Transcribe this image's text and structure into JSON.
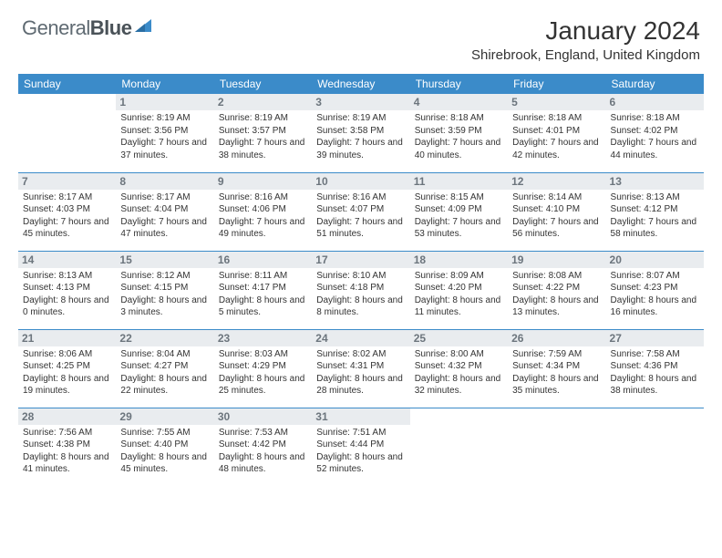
{
  "logo": {
    "text1": "General",
    "text2": "Blue",
    "triangle_color": "#3b8bc9"
  },
  "title": "January 2024",
  "location": "Shirebrook, England, United Kingdom",
  "colors": {
    "header_bg": "#3b8bc9",
    "header_text": "#ffffff",
    "daynum_bg": "#e9ecef",
    "daynum_text": "#6c757d",
    "cell_border": "#3b8bc9",
    "body_text": "#333333",
    "logo_gray": "#5f6a72"
  },
  "weekdays": [
    "Sunday",
    "Monday",
    "Tuesday",
    "Wednesday",
    "Thursday",
    "Friday",
    "Saturday"
  ],
  "weeks": [
    [
      {
        "n": "",
        "sr": "",
        "ss": "",
        "dl": ""
      },
      {
        "n": "1",
        "sr": "Sunrise: 8:19 AM",
        "ss": "Sunset: 3:56 PM",
        "dl": "Daylight: 7 hours and 37 minutes."
      },
      {
        "n": "2",
        "sr": "Sunrise: 8:19 AM",
        "ss": "Sunset: 3:57 PM",
        "dl": "Daylight: 7 hours and 38 minutes."
      },
      {
        "n": "3",
        "sr": "Sunrise: 8:19 AM",
        "ss": "Sunset: 3:58 PM",
        "dl": "Daylight: 7 hours and 39 minutes."
      },
      {
        "n": "4",
        "sr": "Sunrise: 8:18 AM",
        "ss": "Sunset: 3:59 PM",
        "dl": "Daylight: 7 hours and 40 minutes."
      },
      {
        "n": "5",
        "sr": "Sunrise: 8:18 AM",
        "ss": "Sunset: 4:01 PM",
        "dl": "Daylight: 7 hours and 42 minutes."
      },
      {
        "n": "6",
        "sr": "Sunrise: 8:18 AM",
        "ss": "Sunset: 4:02 PM",
        "dl": "Daylight: 7 hours and 44 minutes."
      }
    ],
    [
      {
        "n": "7",
        "sr": "Sunrise: 8:17 AM",
        "ss": "Sunset: 4:03 PM",
        "dl": "Daylight: 7 hours and 45 minutes."
      },
      {
        "n": "8",
        "sr": "Sunrise: 8:17 AM",
        "ss": "Sunset: 4:04 PM",
        "dl": "Daylight: 7 hours and 47 minutes."
      },
      {
        "n": "9",
        "sr": "Sunrise: 8:16 AM",
        "ss": "Sunset: 4:06 PM",
        "dl": "Daylight: 7 hours and 49 minutes."
      },
      {
        "n": "10",
        "sr": "Sunrise: 8:16 AM",
        "ss": "Sunset: 4:07 PM",
        "dl": "Daylight: 7 hours and 51 minutes."
      },
      {
        "n": "11",
        "sr": "Sunrise: 8:15 AM",
        "ss": "Sunset: 4:09 PM",
        "dl": "Daylight: 7 hours and 53 minutes."
      },
      {
        "n": "12",
        "sr": "Sunrise: 8:14 AM",
        "ss": "Sunset: 4:10 PM",
        "dl": "Daylight: 7 hours and 56 minutes."
      },
      {
        "n": "13",
        "sr": "Sunrise: 8:13 AM",
        "ss": "Sunset: 4:12 PM",
        "dl": "Daylight: 7 hours and 58 minutes."
      }
    ],
    [
      {
        "n": "14",
        "sr": "Sunrise: 8:13 AM",
        "ss": "Sunset: 4:13 PM",
        "dl": "Daylight: 8 hours and 0 minutes."
      },
      {
        "n": "15",
        "sr": "Sunrise: 8:12 AM",
        "ss": "Sunset: 4:15 PM",
        "dl": "Daylight: 8 hours and 3 minutes."
      },
      {
        "n": "16",
        "sr": "Sunrise: 8:11 AM",
        "ss": "Sunset: 4:17 PM",
        "dl": "Daylight: 8 hours and 5 minutes."
      },
      {
        "n": "17",
        "sr": "Sunrise: 8:10 AM",
        "ss": "Sunset: 4:18 PM",
        "dl": "Daylight: 8 hours and 8 minutes."
      },
      {
        "n": "18",
        "sr": "Sunrise: 8:09 AM",
        "ss": "Sunset: 4:20 PM",
        "dl": "Daylight: 8 hours and 11 minutes."
      },
      {
        "n": "19",
        "sr": "Sunrise: 8:08 AM",
        "ss": "Sunset: 4:22 PM",
        "dl": "Daylight: 8 hours and 13 minutes."
      },
      {
        "n": "20",
        "sr": "Sunrise: 8:07 AM",
        "ss": "Sunset: 4:23 PM",
        "dl": "Daylight: 8 hours and 16 minutes."
      }
    ],
    [
      {
        "n": "21",
        "sr": "Sunrise: 8:06 AM",
        "ss": "Sunset: 4:25 PM",
        "dl": "Daylight: 8 hours and 19 minutes."
      },
      {
        "n": "22",
        "sr": "Sunrise: 8:04 AM",
        "ss": "Sunset: 4:27 PM",
        "dl": "Daylight: 8 hours and 22 minutes."
      },
      {
        "n": "23",
        "sr": "Sunrise: 8:03 AM",
        "ss": "Sunset: 4:29 PM",
        "dl": "Daylight: 8 hours and 25 minutes."
      },
      {
        "n": "24",
        "sr": "Sunrise: 8:02 AM",
        "ss": "Sunset: 4:31 PM",
        "dl": "Daylight: 8 hours and 28 minutes."
      },
      {
        "n": "25",
        "sr": "Sunrise: 8:00 AM",
        "ss": "Sunset: 4:32 PM",
        "dl": "Daylight: 8 hours and 32 minutes."
      },
      {
        "n": "26",
        "sr": "Sunrise: 7:59 AM",
        "ss": "Sunset: 4:34 PM",
        "dl": "Daylight: 8 hours and 35 minutes."
      },
      {
        "n": "27",
        "sr": "Sunrise: 7:58 AM",
        "ss": "Sunset: 4:36 PM",
        "dl": "Daylight: 8 hours and 38 minutes."
      }
    ],
    [
      {
        "n": "28",
        "sr": "Sunrise: 7:56 AM",
        "ss": "Sunset: 4:38 PM",
        "dl": "Daylight: 8 hours and 41 minutes."
      },
      {
        "n": "29",
        "sr": "Sunrise: 7:55 AM",
        "ss": "Sunset: 4:40 PM",
        "dl": "Daylight: 8 hours and 45 minutes."
      },
      {
        "n": "30",
        "sr": "Sunrise: 7:53 AM",
        "ss": "Sunset: 4:42 PM",
        "dl": "Daylight: 8 hours and 48 minutes."
      },
      {
        "n": "31",
        "sr": "Sunrise: 7:51 AM",
        "ss": "Sunset: 4:44 PM",
        "dl": "Daylight: 8 hours and 52 minutes."
      },
      {
        "n": "",
        "sr": "",
        "ss": "",
        "dl": ""
      },
      {
        "n": "",
        "sr": "",
        "ss": "",
        "dl": ""
      },
      {
        "n": "",
        "sr": "",
        "ss": "",
        "dl": ""
      }
    ]
  ]
}
